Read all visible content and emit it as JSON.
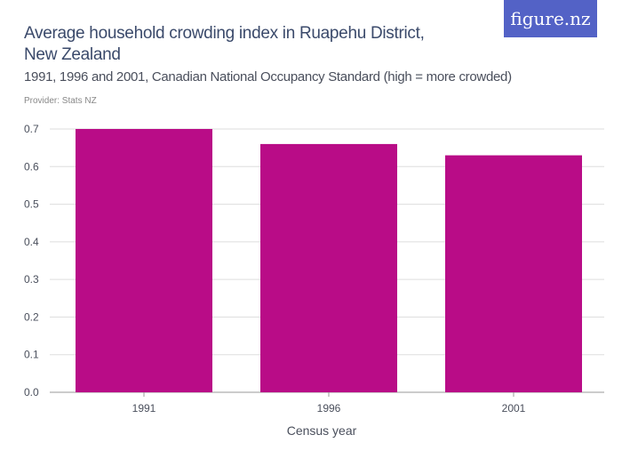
{
  "logo": "figure.nz",
  "chart_data": {
    "type": "bar",
    "title": "Average household crowding index in Ruapehu District, New Zealand",
    "subtitle": "1991, 1996 and 2001, Canadian National Occupancy Standard (high = more crowded)",
    "provider": "Provider: Stats NZ",
    "categories": [
      "1991",
      "1996",
      "2001"
    ],
    "values": [
      0.7,
      0.66,
      0.63
    ],
    "xlabel": "Census year",
    "ylabel": "",
    "ylim": [
      0,
      0.7
    ],
    "yticks": [
      "0.0",
      "0.1",
      "0.2",
      "0.3",
      "0.4",
      "0.5",
      "0.6",
      "0.7"
    ],
    "grid": true,
    "bar_color": "#b90c87"
  }
}
